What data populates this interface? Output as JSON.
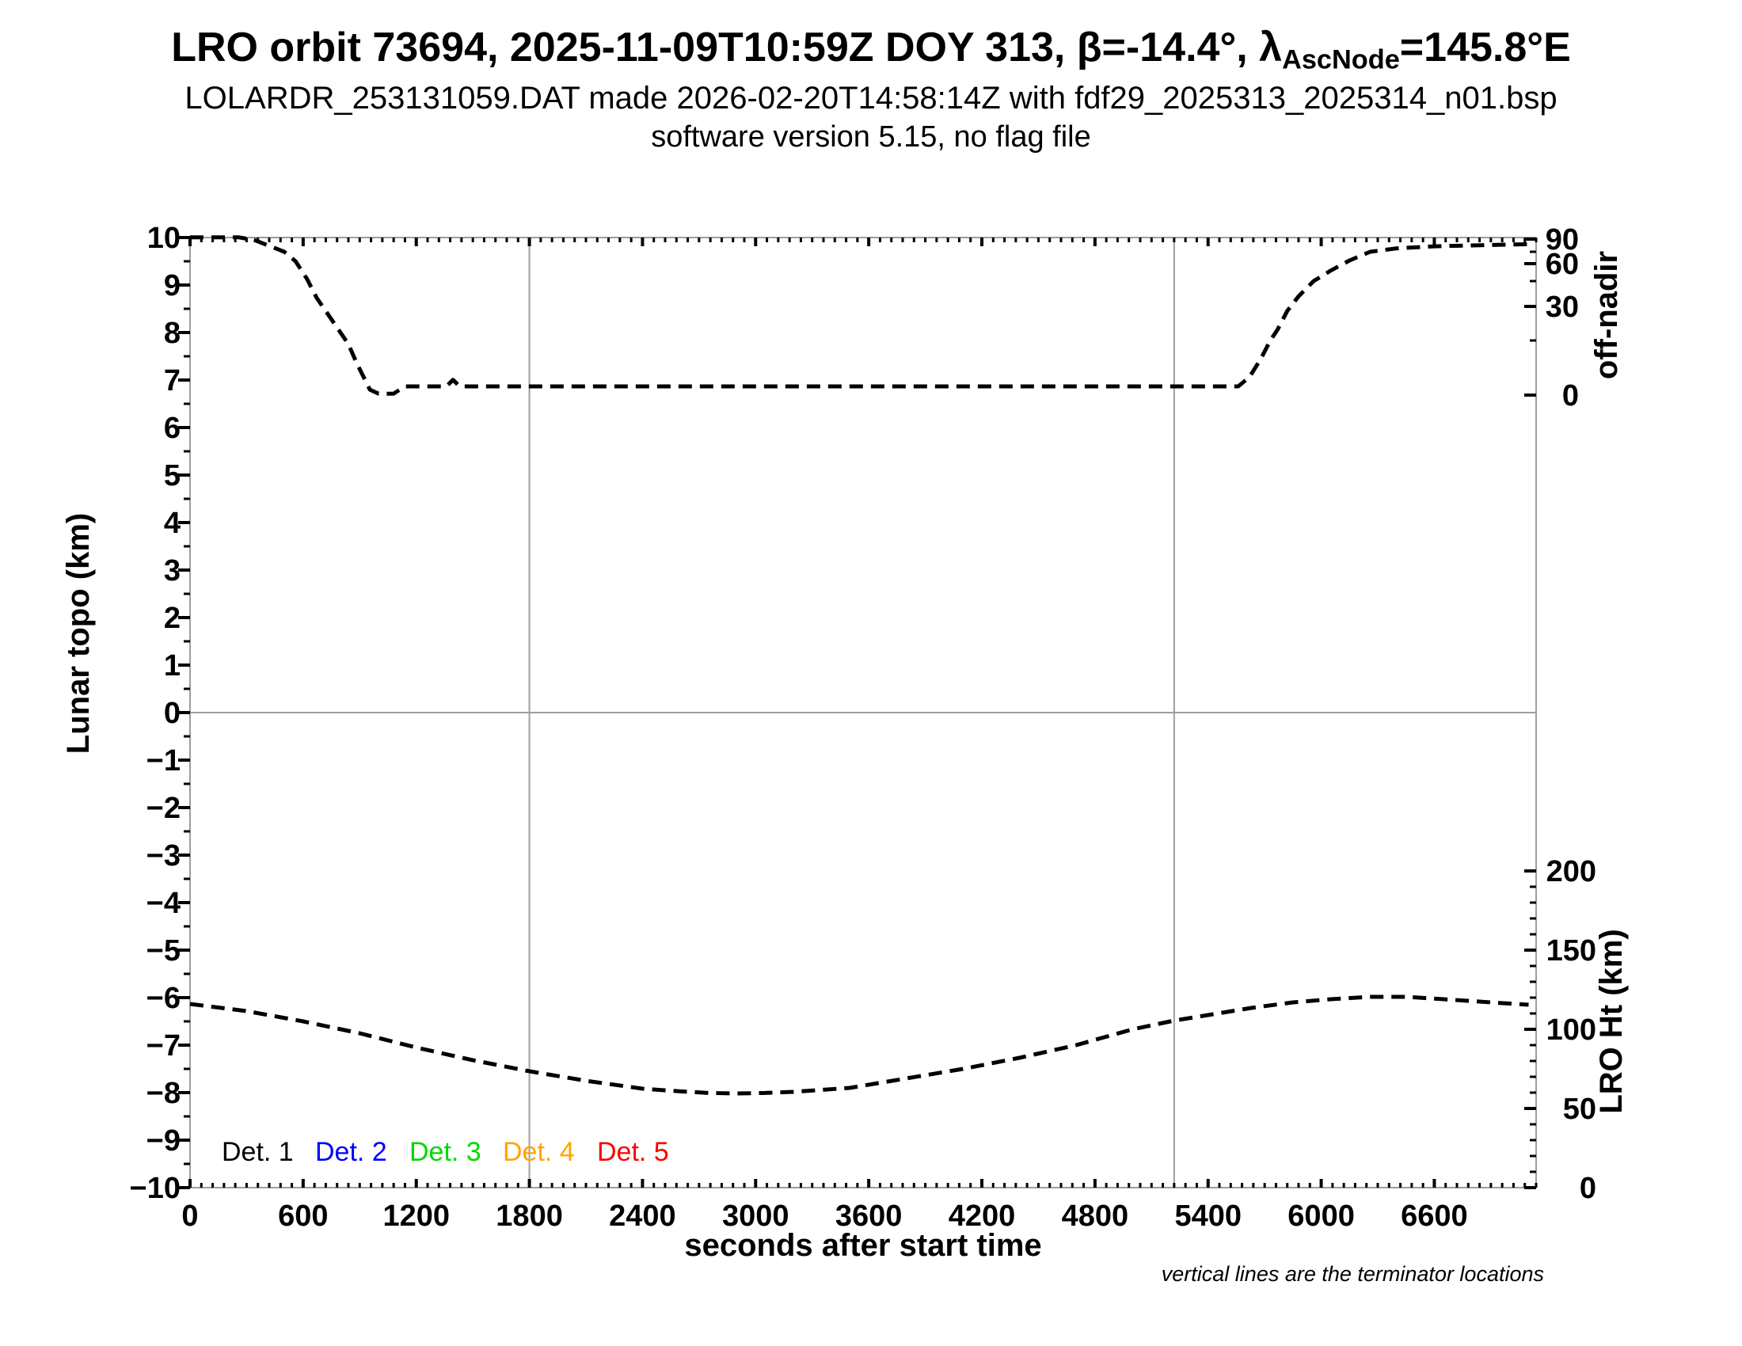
{
  "header": {
    "title_prefix": "LRO orbit 73694, 2025-11-09T10:59Z DOY 313, β=-14.4°, λ",
    "title_subscript": "AscNode",
    "title_suffix": "=145.8°E",
    "subtitle": "LOLARDR_253131059.DAT made 2026-02-20T14:58:14Z with fdf29_2025313_2025314_n01.bsp",
    "subtitle2": "software version 5.15, no flag file"
  },
  "chart_data": {
    "type": "line",
    "title": "LRO orbit 73694, 2025-11-09T10:59Z DOY 313, β=-14.4°, λAscNode=145.8°E",
    "xlabel": "seconds after start time",
    "ylabel_left": "Lunar topo (km)",
    "ylabel_right_top": "off-nadir",
    "ylabel_right_bottom": "LRO Ht (km)",
    "footnote": "vertical lines are the terminator locations",
    "grid": "off",
    "x_axis": {
      "min": 0,
      "max": 7140,
      "major_tick_step": 600,
      "minor_tick_step": 60,
      "tick_labels": [
        0,
        600,
        1200,
        1800,
        2400,
        3000,
        3600,
        4200,
        4800,
        5400,
        6000,
        6600
      ]
    },
    "left_axis": {
      "min": -10,
      "max": 10,
      "major_tick_step": 1,
      "minor_tick_step": 0.5,
      "tick_labels": [
        -10,
        -9,
        -8,
        -7,
        -6,
        -5,
        -4,
        -3,
        -2,
        -1,
        0,
        1,
        2,
        3,
        4,
        5,
        6,
        7,
        8,
        9,
        10
      ]
    },
    "offnadir_axis": {
      "unit": "degrees",
      "tick_values": [
        0,
        15,
        30,
        45,
        60,
        75,
        90
      ],
      "labeled_ticks": [
        0,
        30,
        60,
        90
      ],
      "scale": "nonlinear"
    },
    "lroht_axis": {
      "unit": "km",
      "min": 0,
      "max": 200,
      "major_tick_step": 50,
      "minor_tick_step": 10,
      "tick_labels": [
        0,
        50,
        100,
        150,
        200
      ]
    },
    "zero_topo_gridline": 0,
    "terminator_times_s": [
      1800,
      5220
    ],
    "series": [
      {
        "name": "off-nadir angle",
        "axis": "offnadir",
        "style": "dashed",
        "color": "#000000",
        "points": [
          [
            0,
            92
          ],
          [
            260,
            92
          ],
          [
            340,
            89
          ],
          [
            420,
            82
          ],
          [
            500,
            75
          ],
          [
            560,
            63
          ],
          [
            620,
            47
          ],
          [
            672,
            35
          ],
          [
            769,
            22
          ],
          [
            840,
            14
          ],
          [
            882,
            9
          ],
          [
            930,
            4
          ],
          [
            954,
            1.5
          ],
          [
            1000,
            0.4
          ],
          [
            1080,
            0.4
          ],
          [
            1140,
            2.4
          ],
          [
            1360,
            2.4
          ],
          [
            1395,
            4.2
          ],
          [
            1430,
            2.4
          ],
          [
            1800,
            2.4
          ],
          [
            2600,
            2.4
          ],
          [
            3400,
            2.4
          ],
          [
            4200,
            2.4
          ],
          [
            5000,
            2.4
          ],
          [
            5560,
            2.4
          ],
          [
            5620,
            5
          ],
          [
            5680,
            10
          ],
          [
            5730,
            15
          ],
          [
            5770,
            20
          ],
          [
            5820,
            28
          ],
          [
            5880,
            36
          ],
          [
            5960,
            45
          ],
          [
            6050,
            54
          ],
          [
            6150,
            64
          ],
          [
            6260,
            75
          ],
          [
            6400,
            79
          ],
          [
            6600,
            81.5
          ],
          [
            6800,
            82.5
          ],
          [
            7000,
            83.5
          ],
          [
            7100,
            84
          ]
        ]
      },
      {
        "name": "LRO height",
        "axis": "lroht",
        "style": "dashed",
        "color": "#000000",
        "points": [
          [
            0,
            116
          ],
          [
            300,
            111.5
          ],
          [
            600,
            105
          ],
          [
            900,
            97.5
          ],
          [
            1200,
            88.5
          ],
          [
            1500,
            80.5
          ],
          [
            1800,
            73.5
          ],
          [
            2100,
            67.5
          ],
          [
            2400,
            62.5
          ],
          [
            2600,
            60.8
          ],
          [
            2750,
            59.8
          ],
          [
            2900,
            59.5
          ],
          [
            3050,
            59.8
          ],
          [
            3200,
            60.5
          ],
          [
            3500,
            63
          ],
          [
            3800,
            69
          ],
          [
            4100,
            75
          ],
          [
            4400,
            82
          ],
          [
            4700,
            90
          ],
          [
            5000,
            100
          ],
          [
            5220,
            105.5
          ],
          [
            5400,
            109
          ],
          [
            5630,
            113.5
          ],
          [
            5850,
            117
          ],
          [
            6050,
            119
          ],
          [
            6260,
            120.5
          ],
          [
            6450,
            120.5
          ],
          [
            6650,
            119
          ],
          [
            6900,
            117
          ],
          [
            7100,
            115.5
          ]
        ]
      }
    ],
    "legend": [
      {
        "label": "Det. 1",
        "color": "#000000"
      },
      {
        "label": "Det. 2",
        "color": "#0000ff"
      },
      {
        "label": "Det. 3",
        "color": "#00d800"
      },
      {
        "label": "Det. 4",
        "color": "#ffa500"
      },
      {
        "label": "Det. 5",
        "color": "#ff0000"
      }
    ]
  }
}
